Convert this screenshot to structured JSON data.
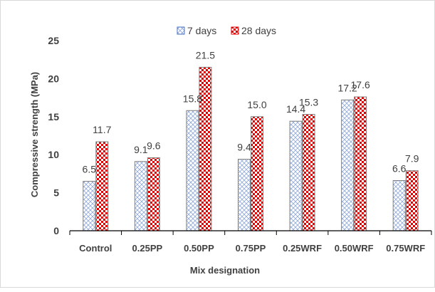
{
  "chart_data": {
    "type": "bar",
    "categories": [
      "Control",
      "0.25PP",
      "0.50PP",
      "0.75PP",
      "0.25WRF",
      "0.50WRF",
      "0.75WRF"
    ],
    "series": [
      {
        "name": "7 days",
        "values": [
          6.5,
          9.1,
          15.8,
          9.4,
          14.4,
          17.2,
          6.6
        ],
        "color": "#4472C4",
        "pattern": "crosshatch"
      },
      {
        "name": "28 days",
        "values": [
          11.7,
          9.6,
          21.5,
          15.0,
          15.3,
          17.6,
          7.9
        ],
        "color": "#E00000",
        "pattern": "checkerboard"
      }
    ],
    "data_labels": [
      [
        "6.5",
        "9.1",
        "15.8",
        "9.4",
        "14.4",
        "17.2",
        "6.6"
      ],
      [
        "11.7",
        "9.6",
        "21.5",
        "15.0",
        "15.3",
        "17.6",
        "7.9"
      ]
    ],
    "title": "",
    "xlabel": "Mix designation",
    "ylabel": "Compressive strength (MPa)",
    "ylim": [
      0,
      25
    ],
    "yticks": [
      "0",
      "5",
      "10",
      "15",
      "20",
      "25"
    ],
    "ytick_values": [
      0,
      5,
      10,
      15,
      20,
      25
    ],
    "grid": false,
    "legend_position": "top-center"
  }
}
